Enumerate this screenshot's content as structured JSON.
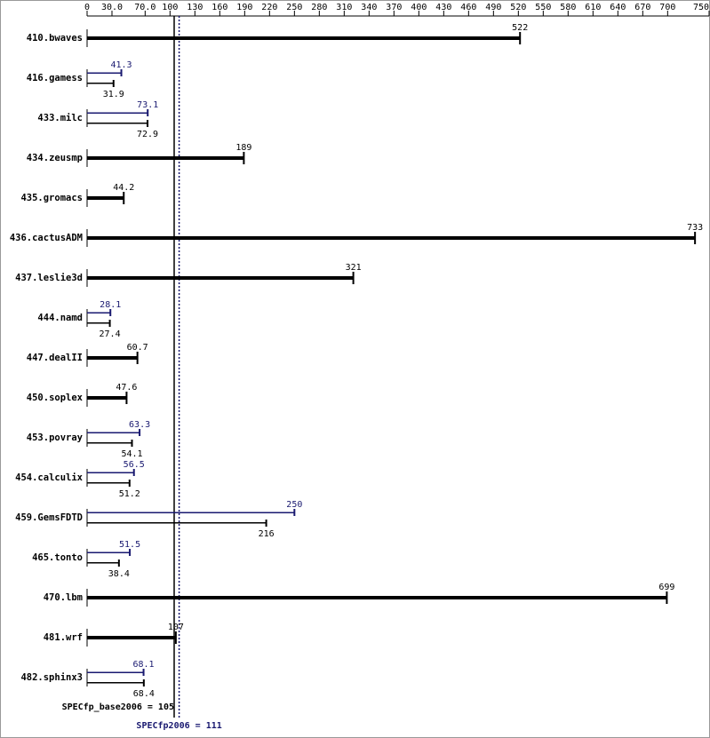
{
  "chart_data": {
    "type": "bar",
    "orientation": "horizontal",
    "categories": [
      "410.bwaves",
      "416.gamess",
      "433.milc",
      "434.zeusmp",
      "435.gromacs",
      "436.cactusADM",
      "437.leslie3d",
      "444.namd",
      "447.dealII",
      "450.soplex",
      "453.povray",
      "454.calculix",
      "459.GemsFDTD",
      "465.tonto",
      "470.lbm",
      "481.wrf",
      "482.sphinx3"
    ],
    "series": [
      {
        "color": "#000000",
        "values": [
          522,
          31.9,
          72.9,
          189,
          44.2,
          733,
          321,
          27.4,
          60.7,
          47.6,
          54.1,
          51.2,
          216,
          38.4,
          699,
          107,
          68.4
        ]
      },
      {
        "color": "#191970",
        "values": [
          null,
          41.3,
          73.1,
          null,
          null,
          null,
          null,
          28.1,
          null,
          null,
          63.3,
          56.5,
          250,
          51.5,
          null,
          null,
          68.1
        ]
      }
    ],
    "xlim": [
      0,
      750
    ],
    "xticks": [
      0,
      {
        "value": 30,
        "label": "30.0"
      },
      {
        "value": 70,
        "label": "70.0"
      },
      100,
      130,
      160,
      190,
      220,
      250,
      280,
      310,
      340,
      370,
      400,
      430,
      460,
      490,
      520,
      550,
      580,
      610,
      640,
      670,
      700,
      750
    ],
    "reference_lines": [
      {
        "value": 105,
        "label": "SPECfp_base2006 = 105",
        "color": "#000000",
        "style": "solid"
      },
      {
        "value": 111,
        "label": "SPECfp2006 = 111",
        "color": "#191970",
        "style": "dotted"
      }
    ]
  }
}
